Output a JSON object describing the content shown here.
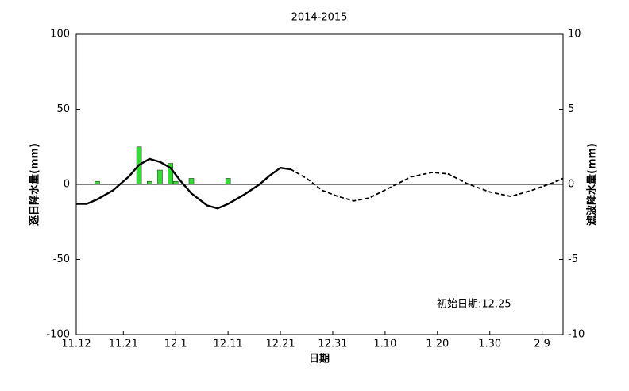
{
  "chart_data": {
    "type": "bar-line",
    "title": "2014-2015",
    "xlabel": "日期",
    "ylabel": "逐日降水量(mm)",
    "y2label": "滤波降水量(mm)",
    "annotation": "初始日期:12.25",
    "xlim": [
      0,
      93
    ],
    "xticks": [
      {
        "value": 0,
        "label": "11.12"
      },
      {
        "value": 9,
        "label": "11.21"
      },
      {
        "value": 19,
        "label": "12.1"
      },
      {
        "value": 29,
        "label": "12.11"
      },
      {
        "value": 39,
        "label": "12.21"
      },
      {
        "value": 49,
        "label": "12.31"
      },
      {
        "value": 59,
        "label": "1.10"
      },
      {
        "value": 69,
        "label": "1.20"
      },
      {
        "value": 79,
        "label": "1.30"
      },
      {
        "value": 89,
        "label": "2.9"
      }
    ],
    "ylim": [
      -100,
      100
    ],
    "yticks": [
      -100,
      -50,
      0,
      50,
      100
    ],
    "y2lim": [
      -10,
      10
    ],
    "y2ticks": [
      -10,
      -5,
      0,
      5,
      10
    ],
    "bars": {
      "color": "#33dd33",
      "x": [
        4,
        12,
        14,
        16,
        18,
        19,
        22,
        29
      ],
      "values": [
        2,
        25,
        2,
        9.5,
        14,
        2,
        4,
        4
      ]
    },
    "x": [
      0,
      2,
      4,
      7,
      10,
      12,
      14,
      16,
      18,
      20,
      22,
      25,
      27,
      29,
      32,
      35,
      37,
      39,
      41,
      44,
      47,
      50,
      53,
      56,
      60,
      64,
      68,
      71,
      75,
      79,
      83,
      87,
      91,
      93
    ],
    "series": [
      {
        "axis": "y2",
        "color": "#000000",
        "dash": false,
        "values": [
          -1.3,
          -1.3,
          -1.0,
          -0.4,
          0.5,
          1.3,
          1.7,
          1.5,
          1.1,
          0.2,
          -0.6,
          -1.4,
          -1.6,
          -1.3,
          -0.7,
          0,
          0.6,
          1.1,
          1.0,
          null,
          null,
          null,
          null,
          null,
          null,
          null,
          null,
          null,
          null,
          null,
          null,
          null,
          null,
          null
        ]
      },
      {
        "axis": "y2",
        "color": "#000000",
        "dash": true,
        "values": [
          -1.3,
          -1.3,
          -1.0,
          -0.4,
          0.5,
          1.3,
          1.7,
          1.5,
          1.1,
          0.2,
          -0.6,
          -1.4,
          -1.6,
          -1.3,
          -0.7,
          0,
          0.6,
          1.1,
          1.0,
          0.4,
          -0.4,
          -0.8,
          -1.1,
          -0.9,
          -0.2,
          0.5,
          0.8,
          0.7,
          0,
          -0.5,
          -0.8,
          -0.4,
          0.1,
          0.4
        ]
      }
    ]
  }
}
